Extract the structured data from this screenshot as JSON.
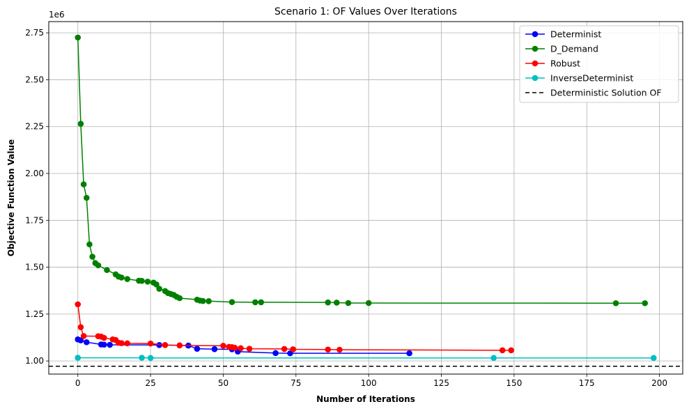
{
  "chart_data": {
    "type": "line",
    "title": "Scenario 1: OF Values Over Iterations",
    "xlabel": "Number of Iterations",
    "ylabel": "Objective Function Value",
    "y_offset_label": "1e6",
    "xlim": [
      -10,
      208
    ],
    "ylim": [
      930000,
      2810000
    ],
    "x_ticks": [
      0,
      25,
      50,
      75,
      100,
      125,
      150,
      175,
      200
    ],
    "y_ticks": [
      1000000,
      1250000,
      1500000,
      1750000,
      2000000,
      2250000,
      2500000,
      2750000
    ],
    "x_tick_labels": [
      "0",
      "25",
      "50",
      "75",
      "100",
      "125",
      "150",
      "175",
      "200"
    ],
    "y_tick_labels": [
      "1.00",
      "1.25",
      "1.50",
      "1.75",
      "2.00",
      "2.25",
      "2.50",
      "2.75"
    ],
    "grid": true,
    "legend_position": "top-right",
    "series": [
      {
        "name": "Determinist",
        "color": "#0000ff",
        "marker": "circle",
        "x": [
          0,
          1,
          3,
          8,
          9,
          11,
          28,
          38,
          41,
          47,
          53,
          55,
          68,
          73,
          114
        ],
        "y": [
          1115000,
          1110000,
          1100000,
          1088000,
          1087000,
          1086000,
          1085000,
          1082000,
          1065000,
          1063000,
          1062000,
          1050000,
          1042000,
          1041000,
          1041000
        ]
      },
      {
        "name": "D_Demand",
        "color": "#008000",
        "marker": "circle",
        "x": [
          0,
          1,
          2,
          3,
          4,
          5,
          6,
          7,
          10,
          13,
          14,
          15,
          17,
          21,
          22,
          24,
          26,
          27,
          28,
          30,
          31,
          32,
          33,
          34,
          35,
          41,
          42,
          43,
          45,
          53,
          61,
          63,
          86,
          89,
          93,
          100,
          185,
          195
        ],
        "y": [
          2725000,
          2265000,
          1942000,
          1870000,
          1622000,
          1556000,
          1522000,
          1510000,
          1485000,
          1462000,
          1450000,
          1445000,
          1437000,
          1428000,
          1427000,
          1423000,
          1418000,
          1408000,
          1385000,
          1373000,
          1362000,
          1357000,
          1352000,
          1342000,
          1335000,
          1327000,
          1322000,
          1320000,
          1319000,
          1314000,
          1313000,
          1313000,
          1312000,
          1311000,
          1309000,
          1309000,
          1308000,
          1308000
        ]
      },
      {
        "name": "Robust",
        "color": "#ff0000",
        "marker": "circle",
        "x": [
          0,
          1,
          2,
          7,
          8,
          9,
          12,
          13,
          14,
          15,
          17,
          25,
          30,
          35,
          50,
          52,
          53,
          54,
          56,
          59,
          71,
          74,
          86,
          90,
          146,
          149
        ],
        "y": [
          1302000,
          1180000,
          1133000,
          1132000,
          1130000,
          1123000,
          1115000,
          1112000,
          1097000,
          1095000,
          1094000,
          1093000,
          1085000,
          1083000,
          1081000,
          1075000,
          1074000,
          1070000,
          1068000,
          1065000,
          1064000,
          1062000,
          1061000,
          1060000,
          1057000,
          1057000
        ]
      },
      {
        "name": "InverseDeterminist",
        "color": "#00bfbf",
        "marker": "circle",
        "x": [
          0,
          22,
          25,
          143,
          198
        ],
        "y": [
          1017000,
          1017000,
          1016000,
          1016000,
          1016000
        ]
      }
    ],
    "reference_lines": [
      {
        "name": "Deterministic Solution OF",
        "orientation": "horizontal",
        "y": 972000,
        "color": "#000000",
        "style": "dashed"
      }
    ]
  }
}
